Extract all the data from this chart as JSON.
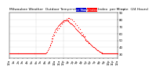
{
  "title": "Milwaukee Weather  Outdoor Temperature  vs Heat Index  per Minute  (24 Hours)",
  "legend_labels": [
    "Outdoor Temp",
    "Heat Index"
  ],
  "legend_colors": [
    "#0000cc",
    "#ff0000"
  ],
  "dot_color": "#ff0000",
  "bg_color": "#ffffff",
  "grid_color": "#bbbbbb",
  "text_color": "#000000",
  "ylim_min": 25,
  "ylim_max": 90,
  "xlim_min": 0,
  "xlim_max": 1440,
  "yticks": [
    30,
    40,
    50,
    60,
    70,
    80,
    90
  ],
  "temp_data_x": [
    0,
    10,
    20,
    30,
    40,
    50,
    60,
    70,
    80,
    90,
    100,
    110,
    120,
    130,
    140,
    150,
    160,
    170,
    180,
    190,
    200,
    210,
    220,
    230,
    240,
    250,
    260,
    270,
    280,
    290,
    300,
    310,
    320,
    330,
    340,
    350,
    360,
    370,
    380,
    390,
    400,
    410,
    420,
    430,
    440,
    450,
    460,
    470,
    480,
    490,
    500,
    510,
    520,
    530,
    540,
    550,
    560,
    570,
    580,
    590,
    600,
    610,
    620,
    630,
    640,
    650,
    660,
    670,
    680,
    690,
    700,
    710,
    720,
    730,
    740,
    750,
    760,
    770,
    780,
    790,
    800,
    810,
    820,
    830,
    840,
    850,
    860,
    870,
    880,
    890,
    900,
    910,
    920,
    930,
    940,
    950,
    960,
    970,
    980,
    990,
    1000,
    1010,
    1020,
    1030,
    1040,
    1050,
    1060,
    1070,
    1080,
    1090,
    1100,
    1110,
    1120,
    1130,
    1140,
    1150,
    1160,
    1170,
    1180,
    1190,
    1200,
    1210,
    1220,
    1230,
    1240,
    1250,
    1260,
    1270,
    1280,
    1290,
    1300,
    1310,
    1320,
    1330,
    1340,
    1350,
    1360,
    1370,
    1380,
    1390,
    1400,
    1410,
    1420,
    1430,
    1440
  ],
  "temp_data_y": [
    31,
    31,
    31,
    31,
    31,
    31,
    31,
    31,
    31,
    31,
    31,
    31,
    31,
    31,
    31,
    31,
    31,
    31,
    31,
    31,
    31,
    31,
    31,
    31,
    31,
    31,
    31,
    31,
    31,
    31,
    31,
    31,
    31,
    31,
    31,
    31,
    31,
    31,
    31,
    31,
    31,
    31,
    31,
    31,
    31,
    31,
    31,
    31,
    32,
    33,
    34,
    36,
    38,
    40,
    43,
    46,
    50,
    53,
    56,
    59,
    62,
    64,
    66,
    68,
    69,
    71,
    72,
    73,
    75,
    76,
    77,
    78,
    79,
    79,
    79,
    79,
    79,
    79,
    79,
    78,
    77,
    76,
    75,
    74,
    73,
    72,
    71,
    70,
    68,
    67,
    65,
    64,
    63,
    62,
    61,
    60,
    58,
    57,
    56,
    55,
    54,
    52,
    51,
    50,
    49,
    48,
    47,
    46,
    45,
    44,
    43,
    42,
    41,
    40,
    39,
    38,
    37,
    36,
    36,
    35,
    34,
    34,
    33,
    33,
    32,
    32,
    32,
    31,
    31,
    31,
    31,
    31,
    31,
    31,
    31,
    31,
    31,
    31,
    31,
    31,
    31,
    31,
    31,
    31,
    31
  ],
  "heat_data_x": [
    540,
    560,
    580,
    600,
    620,
    640,
    660,
    680,
    700,
    720,
    740,
    760,
    780,
    800,
    820,
    840,
    860,
    880,
    900,
    920,
    940,
    960,
    980,
    1000,
    1020,
    1040,
    1060
  ],
  "heat_data_y": [
    44,
    48,
    53,
    58,
    62,
    65,
    68,
    71,
    74,
    77,
    79,
    81,
    82,
    82,
    81,
    80,
    78,
    75,
    72,
    69,
    66,
    62,
    59,
    56,
    52,
    49,
    46
  ],
  "xtick_positions": [
    0,
    60,
    120,
    180,
    240,
    300,
    360,
    420,
    480,
    540,
    600,
    660,
    720,
    780,
    840,
    900,
    960,
    1020,
    1080,
    1140,
    1200,
    1260,
    1320,
    1380,
    1440
  ],
  "xtick_labels": [
    "12a",
    "1a",
    "2a",
    "3a",
    "4a",
    "5a",
    "6a",
    "7a",
    "8a",
    "9a",
    "10a",
    "11a",
    "12p",
    "1p",
    "2p",
    "3p",
    "4p",
    "5p",
    "6p",
    "7p",
    "8p",
    "9p",
    "10p",
    "11p",
    "12a"
  ],
  "vline_positions": [
    360,
    720
  ],
  "marker_size": 0.8,
  "title_fontsize": 3.2,
  "tick_fontsize": 2.8,
  "legend_fontsize": 2.8
}
